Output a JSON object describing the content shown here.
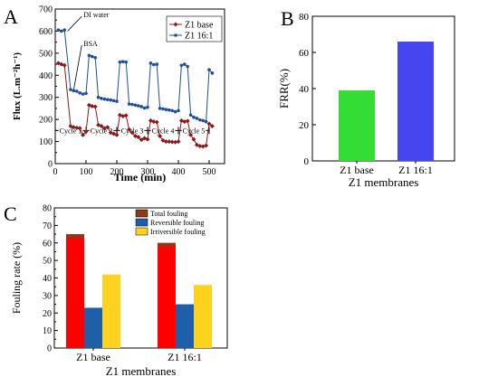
{
  "chart_data": [
    {
      "panel": "A",
      "type": "line",
      "xlabel": "Time (min)",
      "ylabel": "Flux (L.m⁻²h⁻¹)",
      "xlim": [
        0,
        550
      ],
      "ylim": [
        0,
        700
      ],
      "xticks": [
        0,
        100,
        200,
        300,
        400,
        500
      ],
      "yticks": [
        0,
        50,
        100,
        150,
        200,
        250,
        300,
        350,
        400,
        450,
        500,
        550,
        600,
        650,
        700
      ],
      "ytick_labels": [
        "0",
        "",
        "100",
        "",
        "200",
        "",
        "300",
        "",
        "400",
        "",
        "500",
        "",
        "600",
        "",
        "700"
      ],
      "legend_position": "top-right",
      "annotations": [
        {
          "text": "DI water",
          "x": 40,
          "y": 600,
          "tx": 92,
          "ty": 675
        },
        {
          "text": "BSA",
          "x": 60,
          "y": 335,
          "tx": 92,
          "ty": 545
        }
      ],
      "cycles": [
        {
          "label": "Cycle 1",
          "start": 0,
          "end": 100
        },
        {
          "label": "Cycle 2",
          "start": 100,
          "end": 200
        },
        {
          "label": "Cycle 3",
          "start": 200,
          "end": 300
        },
        {
          "label": "Cycle 4",
          "start": 300,
          "end": 400
        },
        {
          "label": "Cycle 5",
          "start": 400,
          "end": 500
        }
      ],
      "cycle_y": 150,
      "series": [
        {
          "name": "Z1 base",
          "color": "#8B1A1A",
          "marker": "diamond",
          "x": [
            10,
            20,
            30,
            50,
            60,
            70,
            80,
            90,
            100,
            110,
            120,
            130,
            140,
            150,
            160,
            170,
            180,
            190,
            200,
            210,
            220,
            230,
            240,
            250,
            260,
            270,
            280,
            290,
            300,
            310,
            320,
            330,
            340,
            350,
            360,
            370,
            380,
            390,
            400,
            410,
            420,
            430,
            440,
            450,
            460,
            470,
            480,
            490,
            500,
            510
          ],
          "y": [
            455,
            450,
            445,
            170,
            165,
            162,
            160,
            130,
            145,
            265,
            260,
            258,
            175,
            170,
            160,
            165,
            140,
            135,
            130,
            220,
            215,
            218,
            155,
            140,
            125,
            120,
            108,
            115,
            110,
            195,
            190,
            188,
            125,
            105,
            100,
            100,
            98,
            97,
            100,
            195,
            190,
            193,
            130,
            110,
            85,
            80,
            78,
            82,
            180,
            170
          ]
        },
        {
          "name": "Z1 16:1",
          "color": "#1F4E9C",
          "marker": "circle",
          "x": [
            10,
            20,
            30,
            50,
            60,
            70,
            80,
            90,
            100,
            110,
            120,
            130,
            140,
            150,
            160,
            170,
            180,
            190,
            200,
            210,
            220,
            230,
            240,
            250,
            260,
            270,
            280,
            290,
            300,
            310,
            320,
            330,
            340,
            350,
            360,
            370,
            380,
            390,
            400,
            410,
            420,
            430,
            440,
            450,
            460,
            470,
            480,
            490,
            500,
            510
          ],
          "y": [
            605,
            600,
            605,
            335,
            330,
            328,
            320,
            315,
            318,
            490,
            485,
            480,
            300,
            295,
            292,
            290,
            288,
            285,
            282,
            460,
            462,
            460,
            270,
            268,
            265,
            262,
            258,
            252,
            255,
            455,
            448,
            450,
            250,
            248,
            245,
            243,
            240,
            235,
            240,
            445,
            450,
            440,
            220,
            210,
            205,
            198,
            195,
            190,
            425,
            410
          ]
        }
      ]
    },
    {
      "panel": "B",
      "type": "bar",
      "xlabel": "Z1 membranes",
      "ylabel": "FRR(%)",
      "ylim": [
        0,
        80
      ],
      "yticks": [
        0,
        20,
        40,
        60,
        80
      ],
      "categories": [
        "Z1 base",
        "Z1 16:1"
      ],
      "values": [
        39,
        66
      ],
      "colors": [
        "#33DD33",
        "#4646F0"
      ]
    },
    {
      "panel": "C",
      "type": "bar",
      "xlabel": "Z1 membranes",
      "ylabel": "Fouling rate (%)",
      "ylim": [
        0,
        80
      ],
      "yticks": [
        0,
        5,
        10,
        15,
        20,
        25,
        30,
        35,
        40,
        45,
        50,
        55,
        60,
        65,
        70,
        75,
        80
      ],
      "ytick_labels": [
        "0",
        "",
        "10",
        "",
        "20",
        "",
        "30",
        "",
        "40",
        "",
        "50",
        "",
        "60",
        "",
        "70",
        "",
        "80"
      ],
      "categories": [
        "Z1 base",
        "Z1 16:1"
      ],
      "legend_position": "top-right",
      "series": [
        {
          "name": "Total fouling",
          "values": [
            65,
            60
          ],
          "color": "#FF0000",
          "top_color": "#8B3A1A"
        },
        {
          "name": "Reversible fouling",
          "values": [
            23,
            25
          ],
          "color": "#1F5FA8"
        },
        {
          "name": "Irriversible fouling",
          "values": [
            42,
            36
          ],
          "color": "#FFD21F"
        }
      ]
    }
  ],
  "panel_labels": [
    "A",
    "B",
    "C"
  ]
}
